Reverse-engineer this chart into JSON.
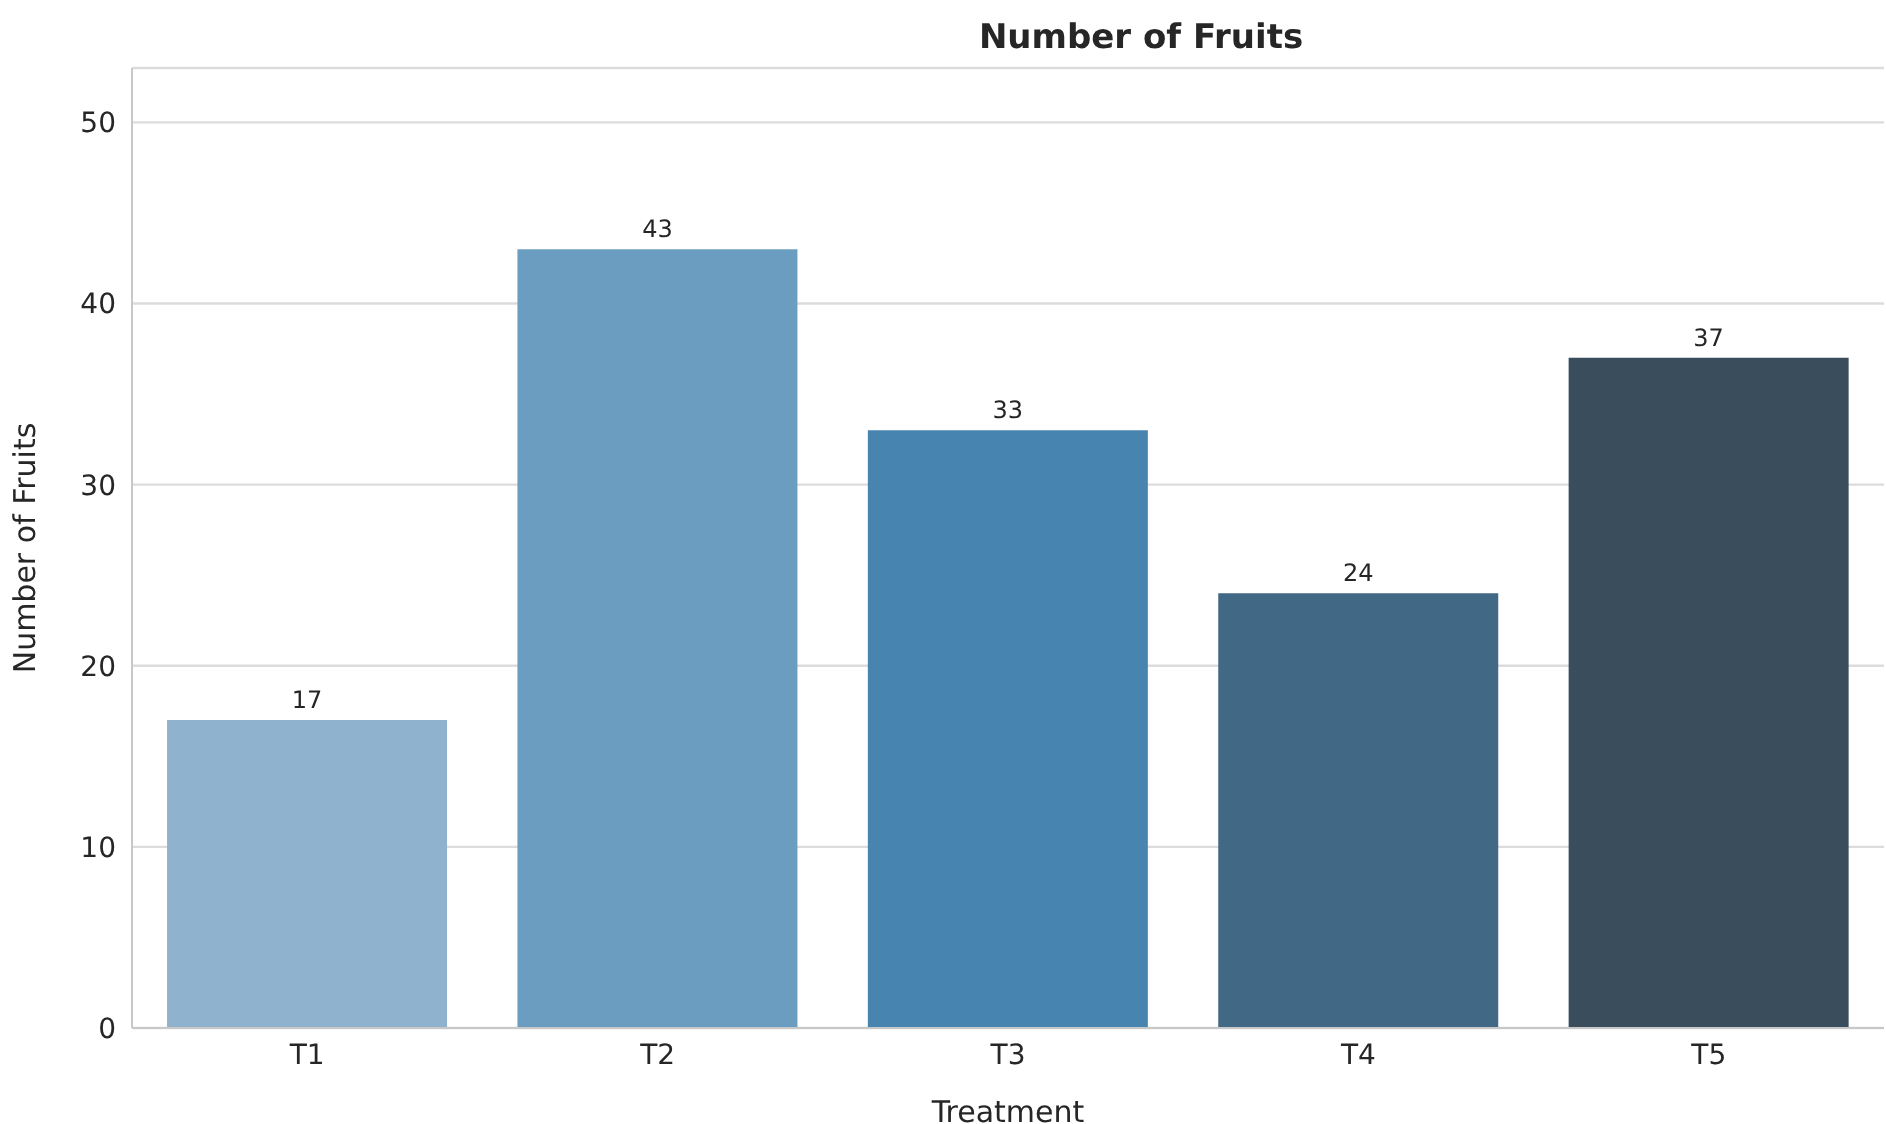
{
  "chart_data": {
    "type": "bar",
    "title": "Number of Fruits",
    "xlabel": "Treatment",
    "ylabel": "Number of Fruits",
    "categories": [
      "T1",
      "T2",
      "T3",
      "T4",
      "T5"
    ],
    "values": [
      17,
      43,
      33,
      24,
      37
    ],
    "colors": [
      "#8fb3cf",
      "#6a9dbf",
      "#4884b0",
      "#416884",
      "#3a4d5c"
    ],
    "ylim": [
      0,
      53
    ],
    "yticks": [
      0,
      10,
      20,
      30,
      40,
      50
    ],
    "grid": "y",
    "data_labels": true
  }
}
